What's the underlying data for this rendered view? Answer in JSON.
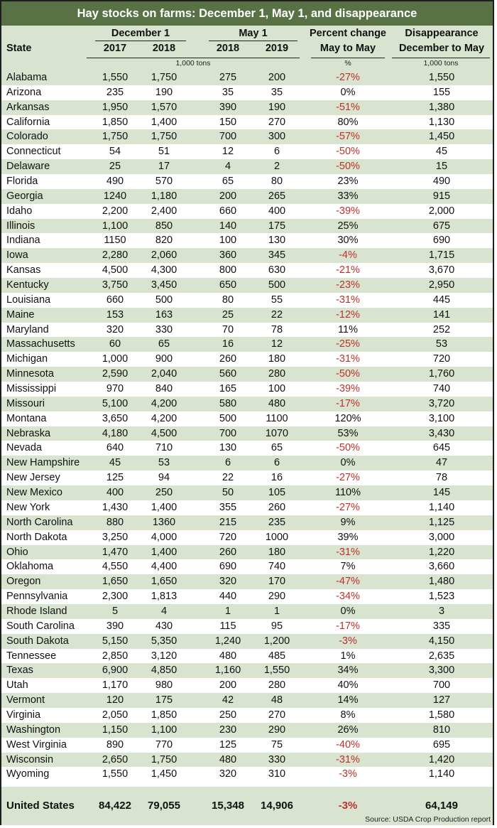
{
  "title": "Hay stocks on farms: December 1, May 1, and disappearance",
  "header": {
    "state": "State",
    "dec1": "December 1",
    "may1": "May 1",
    "y2017": "2017",
    "y2018a": "2018",
    "y2018b": "2018",
    "y2019": "2019",
    "pct_line1": "Percent change",
    "pct_line2": "May to May",
    "dis_line1": "Disappearance",
    "dis_line2": "December to May",
    "unit_stocks": "1,000 tons",
    "unit_pct": "%",
    "unit_dis": "1,000 tons"
  },
  "rows": [
    {
      "state": "Alabama",
      "d2017": "1,550",
      "d2018": "1,750",
      "m2018": "275",
      "m2019": "200",
      "pct": "-27%",
      "dis": "1,550"
    },
    {
      "state": "Arizona",
      "d2017": "235",
      "d2018": "190",
      "m2018": "35",
      "m2019": "35",
      "pct": "0%",
      "dis": "155"
    },
    {
      "state": "Arkansas",
      "d2017": "1,950",
      "d2018": "1,570",
      "m2018": "390",
      "m2019": "190",
      "pct": "-51%",
      "dis": "1,380"
    },
    {
      "state": "California",
      "d2017": "1,850",
      "d2018": "1,400",
      "m2018": "150",
      "m2019": "270",
      "pct": "80%",
      "dis": "1,130"
    },
    {
      "state": "Colorado",
      "d2017": "1,750",
      "d2018": "1,750",
      "m2018": "700",
      "m2019": "300",
      "pct": "-57%",
      "dis": "1,450"
    },
    {
      "state": "Connecticut",
      "d2017": "54",
      "d2018": "51",
      "m2018": "12",
      "m2019": "6",
      "pct": "-50%",
      "dis": "45"
    },
    {
      "state": "Delaware",
      "d2017": "25",
      "d2018": "17",
      "m2018": "4",
      "m2019": "2",
      "pct": "-50%",
      "dis": "15"
    },
    {
      "state": "Florida",
      "d2017": "490",
      "d2018": "570",
      "m2018": "65",
      "m2019": "80",
      "pct": "23%",
      "dis": "490"
    },
    {
      "state": "Georgia",
      "d2017": "1240",
      "d2018": "1,180",
      "m2018": "200",
      "m2019": "265",
      "pct": "33%",
      "dis": "915"
    },
    {
      "state": "Idaho",
      "d2017": "2,200",
      "d2018": "2,400",
      "m2018": "660",
      "m2019": "400",
      "pct": "-39%",
      "dis": "2,000"
    },
    {
      "state": "Illinois",
      "d2017": "1,100",
      "d2018": "850",
      "m2018": "140",
      "m2019": "175",
      "pct": "25%",
      "dis": "675"
    },
    {
      "state": "Indiana",
      "d2017": "1150",
      "d2018": "820",
      "m2018": "100",
      "m2019": "130",
      "pct": "30%",
      "dis": "690"
    },
    {
      "state": "Iowa",
      "d2017": "2,280",
      "d2018": "2,060",
      "m2018": "360",
      "m2019": "345",
      "pct": "-4%",
      "dis": "1,715"
    },
    {
      "state": "Kansas",
      "d2017": "4,500",
      "d2018": "4,300",
      "m2018": "800",
      "m2019": "630",
      "pct": "-21%",
      "dis": "3,670"
    },
    {
      "state": "Kentucky",
      "d2017": "3,750",
      "d2018": "3,450",
      "m2018": "650",
      "m2019": "500",
      "pct": "-23%",
      "dis": "2,950"
    },
    {
      "state": "Louisiana",
      "d2017": "660",
      "d2018": "500",
      "m2018": "80",
      "m2019": "55",
      "pct": "-31%",
      "dis": "445"
    },
    {
      "state": "Maine",
      "d2017": "153",
      "d2018": "163",
      "m2018": "25",
      "m2019": "22",
      "pct": "-12%",
      "dis": "141"
    },
    {
      "state": "Maryland",
      "d2017": "320",
      "d2018": "330",
      "m2018": "70",
      "m2019": "78",
      "pct": "11%",
      "dis": "252"
    },
    {
      "state": "Massachusetts",
      "d2017": "60",
      "d2018": "65",
      "m2018": "16",
      "m2019": "12",
      "pct": "-25%",
      "dis": "53"
    },
    {
      "state": "Michigan",
      "d2017": "1,000",
      "d2018": "900",
      "m2018": "260",
      "m2019": "180",
      "pct": "-31%",
      "dis": "720"
    },
    {
      "state": "Minnesota",
      "d2017": "2,590",
      "d2018": "2,040",
      "m2018": "560",
      "m2019": "280",
      "pct": "-50%",
      "dis": "1,760"
    },
    {
      "state": "Mississippi",
      "d2017": "970",
      "d2018": "840",
      "m2018": "165",
      "m2019": "100",
      "pct": "-39%",
      "dis": "740"
    },
    {
      "state": "Missouri",
      "d2017": "5,100",
      "d2018": "4,200",
      "m2018": "580",
      "m2019": "480",
      "pct": "-17%",
      "dis": "3,720"
    },
    {
      "state": "Montana",
      "d2017": "3,650",
      "d2018": "4,200",
      "m2018": "500",
      "m2019": "1100",
      "pct": "120%",
      "dis": "3,100"
    },
    {
      "state": "Nebraska",
      "d2017": "4,180",
      "d2018": "4,500",
      "m2018": "700",
      "m2019": "1070",
      "pct": "53%",
      "dis": "3,430"
    },
    {
      "state": "Nevada",
      "d2017": "640",
      "d2018": "710",
      "m2018": "130",
      "m2019": "65",
      "pct": "-50%",
      "dis": "645"
    },
    {
      "state": "New Hampshire",
      "d2017": "45",
      "d2018": "53",
      "m2018": "6",
      "m2019": "6",
      "pct": "0%",
      "dis": "47"
    },
    {
      "state": "New Jersey",
      "d2017": "125",
      "d2018": "94",
      "m2018": "22",
      "m2019": "16",
      "pct": "-27%",
      "dis": "78"
    },
    {
      "state": "New Mexico",
      "d2017": "400",
      "d2018": "250",
      "m2018": "50",
      "m2019": "105",
      "pct": "110%",
      "dis": "145"
    },
    {
      "state": "New York",
      "d2017": "1,430",
      "d2018": "1,400",
      "m2018": "355",
      "m2019": "260",
      "pct": "-27%",
      "dis": "1,140"
    },
    {
      "state": "North Carolina",
      "d2017": "880",
      "d2018": "1360",
      "m2018": "215",
      "m2019": "235",
      "pct": "9%",
      "dis": "1,125"
    },
    {
      "state": "North Dakota",
      "d2017": "3,250",
      "d2018": "4,000",
      "m2018": "720",
      "m2019": "1000",
      "pct": "39%",
      "dis": "3,000"
    },
    {
      "state": "Ohio",
      "d2017": "1,470",
      "d2018": "1,400",
      "m2018": "260",
      "m2019": "180",
      "pct": "-31%",
      "dis": "1,220"
    },
    {
      "state": "Oklahoma",
      "d2017": "4,550",
      "d2018": "4,400",
      "m2018": "690",
      "m2019": "740",
      "pct": "7%",
      "dis": "3,660"
    },
    {
      "state": "Oregon",
      "d2017": "1,650",
      "d2018": "1,650",
      "m2018": "320",
      "m2019": "170",
      "pct": "-47%",
      "dis": "1,480"
    },
    {
      "state": "Pennsylvania",
      "d2017": "2,300",
      "d2018": "1,813",
      "m2018": "440",
      "m2019": "290",
      "pct": "-34%",
      "dis": "1,523"
    },
    {
      "state": "Rhode Island",
      "d2017": "5",
      "d2018": "4",
      "m2018": "1",
      "m2019": "1",
      "pct": "0%",
      "dis": "3"
    },
    {
      "state": "South Carolina",
      "d2017": "390",
      "d2018": "430",
      "m2018": "115",
      "m2019": "95",
      "pct": "-17%",
      "dis": "335"
    },
    {
      "state": "South Dakota",
      "d2017": "5,150",
      "d2018": "5,350",
      "m2018": "1,240",
      "m2019": "1,200",
      "pct": "-3%",
      "dis": "4,150"
    },
    {
      "state": "Tennessee",
      "d2017": "2,850",
      "d2018": "3,120",
      "m2018": "480",
      "m2019": "485",
      "pct": "1%",
      "dis": "2,635"
    },
    {
      "state": "Texas",
      "d2017": "6,900",
      "d2018": "4,850",
      "m2018": "1,160",
      "m2019": "1,550",
      "pct": "34%",
      "dis": "3,300"
    },
    {
      "state": "Utah",
      "d2017": "1,170",
      "d2018": "980",
      "m2018": "200",
      "m2019": "280",
      "pct": "40%",
      "dis": "700"
    },
    {
      "state": "Vermont",
      "d2017": "120",
      "d2018": "175",
      "m2018": "42",
      "m2019": "48",
      "pct": "14%",
      "dis": "127"
    },
    {
      "state": "Virginia",
      "d2017": "2,050",
      "d2018": "1,850",
      "m2018": "250",
      "m2019": "270",
      "pct": "8%",
      "dis": "1,580"
    },
    {
      "state": "Washington",
      "d2017": "1,150",
      "d2018": "1,100",
      "m2018": "230",
      "m2019": "290",
      "pct": "26%",
      "dis": "810"
    },
    {
      "state": "West Virginia",
      "d2017": "890",
      "d2018": "770",
      "m2018": "125",
      "m2019": "75",
      "pct": "-40%",
      "dis": "695"
    },
    {
      "state": "Wisconsin",
      "d2017": "2,650",
      "d2018": "1,750",
      "m2018": "480",
      "m2019": "330",
      "pct": "-31%",
      "dis": "1,420"
    },
    {
      "state": "Wyoming",
      "d2017": "1,550",
      "d2018": "1,450",
      "m2018": "320",
      "m2019": "310",
      "pct": "-3%",
      "dis": "1,140"
    }
  ],
  "total": {
    "state": "United States",
    "d2017": "84,422",
    "d2018": "79,055",
    "m2018": "15,348",
    "m2019": "14,906",
    "pct": "-3%",
    "dis": "64,149"
  },
  "source": "Source: USDA Crop Production report",
  "colors": {
    "title_bg": "#587245",
    "band": "#d8e4cf",
    "negative": "#c0302a"
  }
}
